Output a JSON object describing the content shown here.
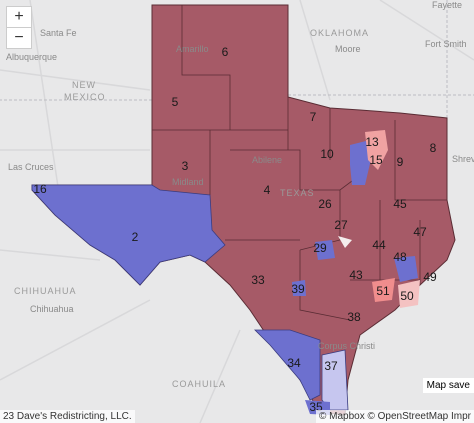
{
  "controls": {
    "zoom_in": "+",
    "zoom_out": "−"
  },
  "place_labels": [
    {
      "text": "Santa Fe"
    },
    {
      "text": "Albuquerque"
    },
    {
      "text": "NEW"
    },
    {
      "text": "MEXICO"
    },
    {
      "text": "OKLAHOMA"
    },
    {
      "text": "Moore"
    },
    {
      "text": "Fort Smith"
    },
    {
      "text": "Fayette"
    },
    {
      "text": "Amarillo"
    },
    {
      "text": "Abilene"
    },
    {
      "text": "Midland"
    },
    {
      "text": "TEXAS"
    },
    {
      "text": "Las Cruces"
    },
    {
      "text": "CHIHUAHUA"
    },
    {
      "text": "Chihuahua"
    },
    {
      "text": "COAHUILA"
    },
    {
      "text": "Corpus Christi"
    },
    {
      "text": "Shrevepo"
    }
  ],
  "district_labels": [
    {
      "text": "6"
    },
    {
      "text": "5"
    },
    {
      "text": "13"
    },
    {
      "text": "3"
    },
    {
      "text": "7"
    },
    {
      "text": "10"
    },
    {
      "text": "15"
    },
    {
      "text": "9"
    },
    {
      "text": "8"
    },
    {
      "text": "4"
    },
    {
      "text": "26"
    },
    {
      "text": "2"
    },
    {
      "text": "27"
    },
    {
      "text": "45"
    },
    {
      "text": "47"
    },
    {
      "text": "44"
    },
    {
      "text": "29"
    },
    {
      "text": "48"
    },
    {
      "text": "43"
    },
    {
      "text": "39"
    },
    {
      "text": "33"
    },
    {
      "text": "51"
    },
    {
      "text": "49"
    },
    {
      "text": "50"
    },
    {
      "text": "38"
    },
    {
      "text": "34"
    },
    {
      "text": "37"
    },
    {
      "text": "35"
    },
    {
      "text": "16"
    }
  ],
  "map_saved": "Map save",
  "copyright": "23 Dave's Redistricting, LLC.",
  "attribution": "© Mapbox © OpenStreetMap Impr"
}
